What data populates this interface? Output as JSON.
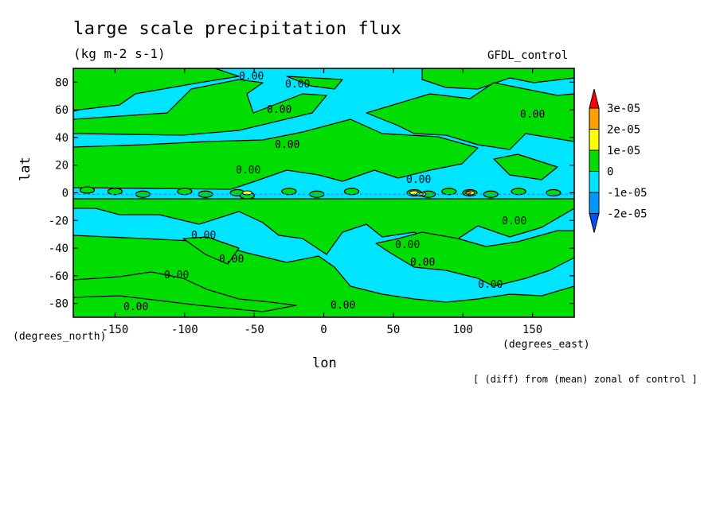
{
  "chart_data": {
    "type": "heatmap",
    "title": "large scale precipitation flux",
    "units": "(kg m-2 s-1)",
    "dataset": "GFDL_control",
    "footnote": "[ (diff) from (mean) zonal of control ]",
    "xlabel": "lon",
    "ylabel": "lat",
    "x_units": "(degrees_east)",
    "y_units": "(degrees_north)",
    "xlim": [
      -180,
      180
    ],
    "ylim": [
      -90,
      90
    ],
    "x_ticks": [
      -150,
      -100,
      -50,
      0,
      50,
      100,
      150
    ],
    "x_tick_labels": [
      "-150",
      "-100",
      "-50",
      "0",
      "50",
      "100",
      "150"
    ],
    "y_ticks": [
      80,
      60,
      40,
      20,
      0,
      -20,
      -40,
      -60,
      -80
    ],
    "y_tick_labels": [
      "80",
      "60",
      "40",
      "20",
      "0",
      "-20",
      "-40",
      "-60",
      "-80"
    ],
    "colorbar": {
      "levels": [
        "3e-05",
        "2e-05",
        "1e-05",
        "0",
        "-1e-05",
        "-2e-05"
      ],
      "colors": [
        "#ff0000",
        "#ffa000",
        "#ffff00",
        "#00dd00",
        "#00e5ff",
        "#0096ff",
        "#0050ff"
      ]
    },
    "contour_labels": [
      "0.00",
      "0.00",
      "0.00",
      "0.00",
      "0.00",
      "0.00",
      "0.00",
      "0.00",
      "0.00",
      "0.00",
      "0.00",
      "0.00",
      "0.00",
      "0.00",
      "0.00",
      "0.00"
    ],
    "negative_color": "#00e5ff",
    "positive_color": "#00dd00"
  }
}
